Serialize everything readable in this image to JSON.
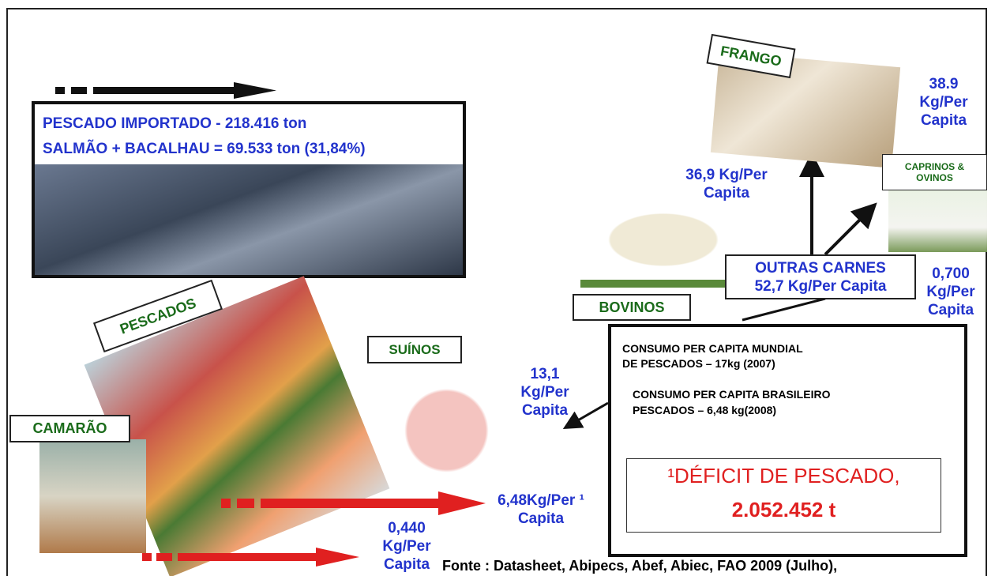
{
  "imported": {
    "line1": "PESCADO IMPORTADO -  218.416 ton",
    "line2": "SALMÃO + BACALHAU = 69.533 ton (31,84%)"
  },
  "frango": {
    "label": "FRANGO",
    "value": [
      "38.9",
      "Kg/Per",
      "Capita"
    ]
  },
  "caprinos": {
    "label": [
      "CAPRINOS &",
      "OVINOS"
    ],
    "value": [
      "0,700",
      "Kg/Per",
      "Capita"
    ]
  },
  "bovinos": {
    "label": "BOVINOS",
    "value": [
      "36,9 Kg/Per",
      "Capita"
    ]
  },
  "outras_carnes": {
    "label": "OUTRAS CARNES",
    "value": "52,7 Kg/Per Capita"
  },
  "suinos": {
    "label": "SUÍNOS",
    "value": [
      "13,1",
      "Kg/Per",
      "Capita"
    ]
  },
  "pescados": {
    "label": "PESCADOS",
    "value": [
      "6,48Kg/Per ¹",
      "Capita"
    ]
  },
  "camarao": {
    "label": "CAMARÃO",
    "value": [
      "0,440",
      "Kg/Per",
      "Capita"
    ]
  },
  "consumo": {
    "mundial": [
      "CONSUMO PER CAPITA MUNDIAL",
      "DE PESCADOS – 17kg (2007)"
    ],
    "brasileiro": [
      "CONSUMO PER CAPITA BRASILEIRO",
      "PESCADOS – 6,48 kg(2008)"
    ]
  },
  "deficit": {
    "line1": "¹DÉFICIT DE PESCADO,",
    "line2": "2.052.452 t"
  },
  "source": "Fonte : Datasheet, Abipecs, Abef, Abiec, FAO 2009 (Julho),"
}
